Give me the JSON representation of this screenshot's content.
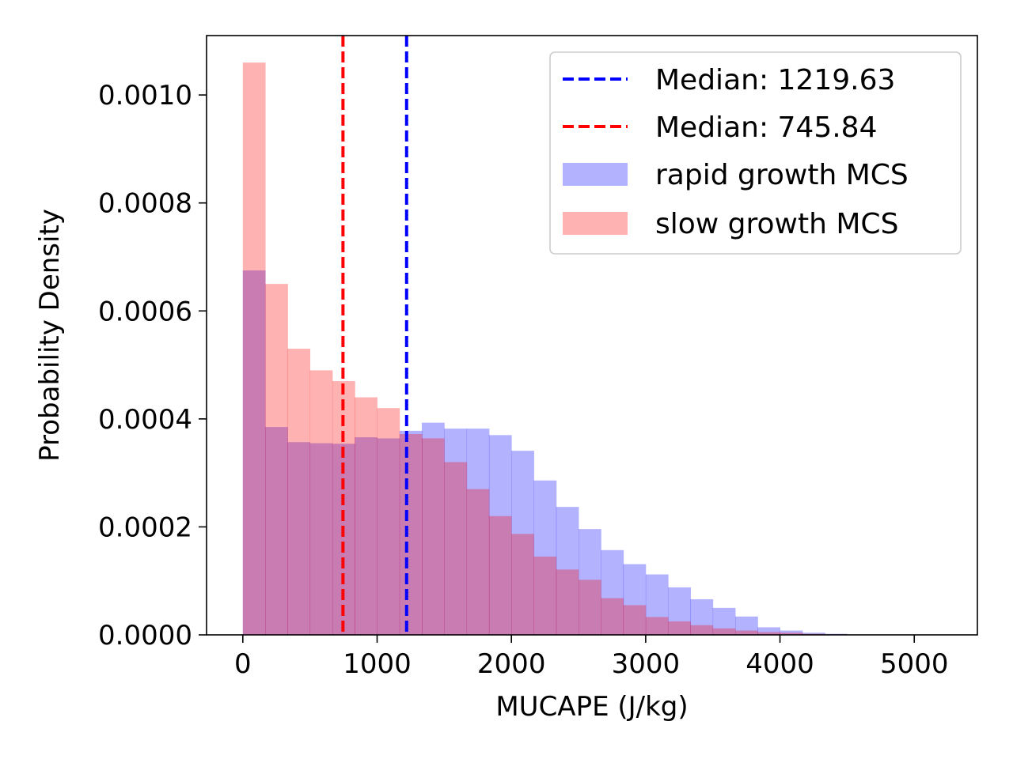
{
  "chart_data": {
    "type": "bar",
    "xlabel": "MUCAPE (J/kg)",
    "ylabel": "Probability Density",
    "xlim": [
      -270,
      5470
    ],
    "ylim": [
      0,
      0.00111
    ],
    "xticks": [
      0,
      1000,
      2000,
      3000,
      4000,
      5000
    ],
    "xtick_labels": [
      "0",
      "1000",
      "2000",
      "3000",
      "4000",
      "5000"
    ],
    "yticks": [
      0,
      0.0002,
      0.0004,
      0.0006,
      0.0008,
      0.001
    ],
    "ytick_labels": [
      "0.0000",
      "0.0002",
      "0.0004",
      "0.0006",
      "0.0008",
      "0.0010"
    ],
    "grid": false,
    "legend_position": "upper right",
    "bin_width": 167,
    "series": [
      {
        "name": "rapid growth MCS",
        "color": "#0000ff",
        "alpha": 0.3,
        "bin_starts": [
          0,
          167,
          333,
          500,
          667,
          833,
          1000,
          1167,
          1333,
          1500,
          1667,
          1833,
          2000,
          2167,
          2333,
          2500,
          2667,
          2833,
          3000,
          3167,
          3333,
          3500,
          3667,
          3833,
          4000,
          4167,
          4333
        ],
        "values": [
          0.000675,
          0.000385,
          0.000357,
          0.000355,
          0.000354,
          0.000366,
          0.000364,
          0.000378,
          0.000393,
          0.000382,
          0.000382,
          0.00037,
          0.000341,
          0.000286,
          0.000237,
          0.000196,
          0.000157,
          0.000131,
          0.000112,
          8.8e-05,
          6.6e-05,
          5e-05,
          3.4e-05,
          1.4e-05,
          8e-06,
          4e-06,
          2e-06
        ]
      },
      {
        "name": "slow growth MCS",
        "color": "#ff0000",
        "alpha": 0.3,
        "bin_starts": [
          0,
          167,
          333,
          500,
          667,
          833,
          1000,
          1167,
          1333,
          1500,
          1667,
          1833,
          2000,
          2167,
          2333,
          2500,
          2667,
          2833,
          3000,
          3167,
          3333,
          3500,
          3667,
          3833,
          4000,
          4167,
          4333
        ],
        "values": [
          0.00106,
          0.00065,
          0.00053,
          0.00049,
          0.00047,
          0.00044,
          0.00042,
          0.000372,
          0.000364,
          0.00032,
          0.00027,
          0.00022,
          0.000187,
          0.000145,
          0.000121,
          0.000102,
          6.8e-05,
          5.5e-05,
          3.3e-05,
          2.5e-05,
          1.8e-05,
          1.2e-05,
          8e-06,
          5e-06,
          4e-06,
          2e-06,
          1e-06
        ]
      }
    ],
    "vlines": [
      {
        "label": "Median: 1219.63",
        "x": 1219.63,
        "color": "#0000ff"
      },
      {
        "label": "Median: 745.84",
        "x": 745.84,
        "color": "#ff0000"
      }
    ],
    "legend": [
      {
        "kind": "line",
        "label": "Median: 1219.63",
        "color": "#0000ff"
      },
      {
        "kind": "line",
        "label": "Median: 745.84",
        "color": "#ff0000"
      },
      {
        "kind": "patch",
        "label": "rapid growth MCS",
        "color": "#0000ff"
      },
      {
        "kind": "patch",
        "label": "slow growth MCS",
        "color": "#ff0000"
      }
    ]
  }
}
